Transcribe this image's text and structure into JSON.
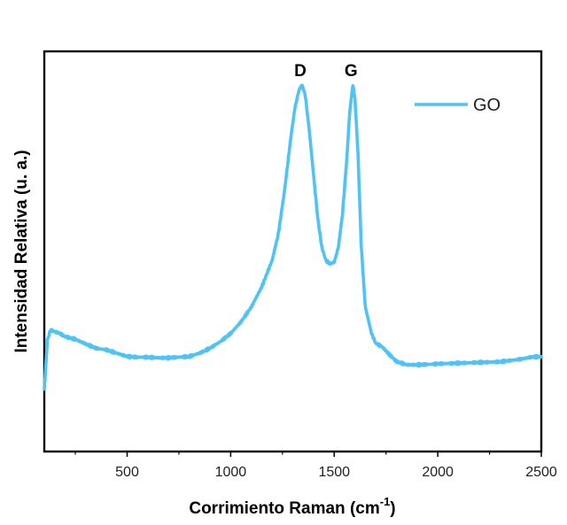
{
  "chart_data": {
    "type": "line",
    "title": "",
    "xlabel": "Corrimiento Raman (cm",
    "xlabel_sup": "-1",
    "xlabel_suffix": ")",
    "ylabel": "Intensidad Relativa (u. a.)",
    "xlim": [
      100,
      2500
    ],
    "ylim": [
      0,
      1.0
    ],
    "x_ticks": [
      500,
      1000,
      1500,
      2000,
      2500
    ],
    "x_tick_labels": [
      "500",
      "1000",
      "1500",
      "2000",
      "2500"
    ],
    "y_ticks_shown": false,
    "grid": false,
    "legend_position": "top-right",
    "colors": {
      "series": "#4fc3f7",
      "axis": "#000000"
    },
    "series": [
      {
        "name": "GO",
        "x": [
          100,
          115,
          130,
          150,
          175,
          200,
          250,
          300,
          350,
          400,
          450,
          500,
          550,
          600,
          650,
          700,
          750,
          800,
          850,
          900,
          950,
          1000,
          1050,
          1100,
          1150,
          1200,
          1230,
          1260,
          1290,
          1310,
          1330,
          1345,
          1360,
          1380,
          1400,
          1420,
          1440,
          1460,
          1480,
          1500,
          1520,
          1540,
          1560,
          1575,
          1590,
          1600,
          1615,
          1630,
          1650,
          1680,
          1700,
          1730,
          1760,
          1800,
          1850,
          1900,
          1950,
          2000,
          2100,
          2200,
          2300,
          2400,
          2450,
          2500
        ],
        "y": [
          0.08,
          0.23,
          0.26,
          0.255,
          0.25,
          0.24,
          0.232,
          0.218,
          0.205,
          0.2,
          0.19,
          0.18,
          0.178,
          0.178,
          0.176,
          0.176,
          0.178,
          0.18,
          0.19,
          0.205,
          0.225,
          0.25,
          0.285,
          0.33,
          0.39,
          0.47,
          0.55,
          0.68,
          0.84,
          0.93,
          0.985,
          1.0,
          0.97,
          0.86,
          0.73,
          0.6,
          0.51,
          0.47,
          0.46,
          0.465,
          0.51,
          0.61,
          0.77,
          0.92,
          1.0,
          0.96,
          0.79,
          0.52,
          0.33,
          0.25,
          0.22,
          0.21,
          0.19,
          0.165,
          0.155,
          0.155,
          0.156,
          0.158,
          0.16,
          0.162,
          0.164,
          0.172,
          0.178,
          0.18
        ]
      }
    ],
    "annotations": [
      {
        "text": "D",
        "x": 1345,
        "y": 1.0
      },
      {
        "text": "G",
        "x": 1590,
        "y": 1.0
      }
    ]
  }
}
